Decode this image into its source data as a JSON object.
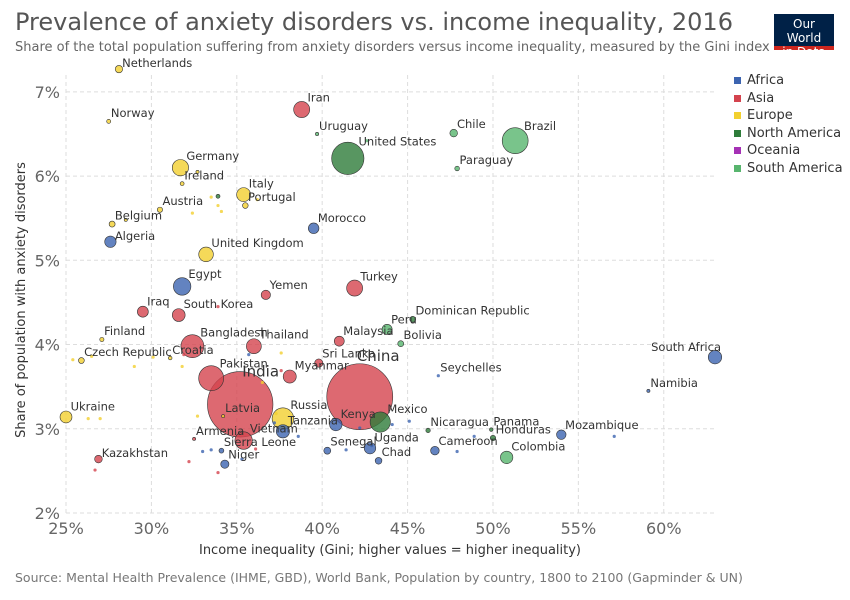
{
  "header": {
    "title": "Prevalence of anxiety disorders vs. income inequality, 2016",
    "subtitle": "Share of the total population suffering from anxiety disorders versus income inequality, measured by the Gini index",
    "logo_line1": "Our World",
    "logo_line2": "in Data"
  },
  "footer": {
    "source": "Source: Mental Health Prevalence (IHME, GBD), World Bank, Population by country, 1800 to 2100 (Gapminder & UN)"
  },
  "legend": {
    "items": [
      {
        "label": "Africa",
        "color": "#3C64B0"
      },
      {
        "label": "Asia",
        "color": "#D4434E"
      },
      {
        "label": "Europe",
        "color": "#F2D02F"
      },
      {
        "label": "North America",
        "color": "#2E7C3A"
      },
      {
        "label": "Oceania",
        "color": "#A531B5"
      },
      {
        "label": "South America",
        "color": "#58B56E"
      }
    ]
  },
  "chart_data": {
    "type": "scatter",
    "title": "Prevalence of anxiety disorders vs. income inequality, 2016",
    "xlabel": "Income inequality (Gini; higher values = higher inequality)",
    "ylabel": "Share of population with anxiety disorders",
    "xlim": [
      25,
      63
    ],
    "ylim": [
      2,
      7.2
    ],
    "x_ticks": [
      25,
      30,
      35,
      40,
      45,
      50,
      55,
      60
    ],
    "x_tick_labels": [
      "25%",
      "30%",
      "35%",
      "40%",
      "45%",
      "50%",
      "55%",
      "60%"
    ],
    "y_ticks": [
      2,
      3,
      4,
      5,
      6,
      7
    ],
    "y_tick_labels": [
      "2%",
      "3%",
      "4%",
      "5%",
      "6%",
      "7%"
    ],
    "grid": true,
    "legend_position": "top-right",
    "points": [
      {
        "label": "Netherlands",
        "region": "Europe",
        "x": 28.1,
        "y": 7.27,
        "pop": 17
      },
      {
        "label": "Norway",
        "region": "Europe",
        "x": 27.5,
        "y": 6.65,
        "pop": 5
      },
      {
        "label": "Iran",
        "region": "Asia",
        "x": 38.8,
        "y": 6.79,
        "pop": 80
      },
      {
        "label": "Uruguay",
        "region": "South America",
        "x": 39.7,
        "y": 6.5,
        "pop": 3.4
      },
      {
        "label": "Chile",
        "region": "South America",
        "x": 47.7,
        "y": 6.51,
        "pop": 18
      },
      {
        "label": "Brazil",
        "region": "South America",
        "x": 51.3,
        "y": 6.42,
        "pop": 208
      },
      {
        "label": "United States",
        "region": "North America",
        "x": 41.5,
        "y": 6.21,
        "pop": 323
      },
      {
        "label": "Germany",
        "region": "Europe",
        "x": 31.7,
        "y": 6.1,
        "pop": 82
      },
      {
        "label": "Ireland",
        "region": "Europe",
        "x": 31.8,
        "y": 5.91,
        "pop": 4.8
      },
      {
        "label": "Paraguay",
        "region": "South America",
        "x": 47.9,
        "y": 6.09,
        "pop": 6.7
      },
      {
        "label": "Italy",
        "region": "Europe",
        "x": 35.4,
        "y": 5.78,
        "pop": 60
      },
      {
        "label": "Portugal",
        "region": "Europe",
        "x": 35.5,
        "y": 5.65,
        "pop": 10
      },
      {
        "label": "Austria",
        "region": "Europe",
        "x": 30.5,
        "y": 5.6,
        "pop": 8.7
      },
      {
        "label": "Belgium",
        "region": "Europe",
        "x": 27.7,
        "y": 5.43,
        "pop": 11
      },
      {
        "label": "Morocco",
        "region": "Africa",
        "x": 39.5,
        "y": 5.38,
        "pop": 35
      },
      {
        "label": "Algeria",
        "region": "Africa",
        "x": 27.6,
        "y": 5.22,
        "pop": 40
      },
      {
        "label": "United Kingdom",
        "region": "Europe",
        "x": 33.2,
        "y": 5.07,
        "pop": 66
      },
      {
        "label": "Egypt",
        "region": "Africa",
        "x": 31.8,
        "y": 4.69,
        "pop": 95
      },
      {
        "label": "Yemen",
        "region": "Asia",
        "x": 36.7,
        "y": 4.59,
        "pop": 27
      },
      {
        "label": "Turkey",
        "region": "Asia",
        "x": 41.9,
        "y": 4.67,
        "pop": 79
      },
      {
        "label": "Iraq",
        "region": "Asia",
        "x": 29.5,
        "y": 4.39,
        "pop": 37
      },
      {
        "label": "South Korea",
        "region": "Asia",
        "x": 31.6,
        "y": 4.35,
        "pop": 51
      },
      {
        "label": "Dominican Republic",
        "region": "North America",
        "x": 45.3,
        "y": 4.3,
        "pop": 10.6
      },
      {
        "label": "Peru",
        "region": "South America",
        "x": 43.8,
        "y": 4.18,
        "pop": 32
      },
      {
        "label": "Malaysia",
        "region": "Asia",
        "x": 41.0,
        "y": 4.04,
        "pop": 31
      },
      {
        "label": "Bolivia",
        "region": "South America",
        "x": 44.6,
        "y": 4.01,
        "pop": 11
      },
      {
        "label": "Finland",
        "region": "Europe",
        "x": 27.1,
        "y": 4.06,
        "pop": 5.5
      },
      {
        "label": "Bangladesh",
        "region": "Asia",
        "x": 32.4,
        "y": 3.98,
        "pop": 163
      },
      {
        "label": "Thailand",
        "region": "Asia",
        "x": 36.0,
        "y": 3.98,
        "pop": 69
      },
      {
        "label": "South Africa",
        "region": "Africa",
        "x": 63.0,
        "y": 3.85,
        "pop": 56
      },
      {
        "label": "Czech Republic",
        "region": "Europe",
        "x": 25.9,
        "y": 3.81,
        "pop": 10.6
      },
      {
        "label": "Croatia",
        "region": "Europe",
        "x": 31.1,
        "y": 3.84,
        "pop": 4.2
      },
      {
        "label": "Sri Lanka",
        "region": "Asia",
        "x": 39.8,
        "y": 3.78,
        "pop": 21
      },
      {
        "label": "Pakistan",
        "region": "Asia",
        "x": 33.5,
        "y": 3.6,
        "pop": 193
      },
      {
        "label": "Myanmar",
        "region": "Asia",
        "x": 38.1,
        "y": 3.62,
        "pop": 53
      },
      {
        "label": "Seychelles",
        "region": "Africa",
        "x": 46.8,
        "y": 3.63,
        "pop": 0.1
      },
      {
        "label": "India",
        "region": "Asia",
        "x": 35.2,
        "y": 3.29,
        "pop": 1324
      },
      {
        "label": "China",
        "region": "Asia",
        "x": 42.2,
        "y": 3.38,
        "pop": 1379
      },
      {
        "label": "Namibia",
        "region": "Africa",
        "x": 59.1,
        "y": 3.45,
        "pop": 2.5
      },
      {
        "label": "Ukraine",
        "region": "Europe",
        "x": 25.0,
        "y": 3.14,
        "pop": 44
      },
      {
        "label": "Latvia",
        "region": "Europe",
        "x": 34.2,
        "y": 3.15,
        "pop": 2
      },
      {
        "label": "Russia",
        "region": "Europe",
        "x": 37.7,
        "y": 3.12,
        "pop": 144
      },
      {
        "label": "Kenya",
        "region": "Africa",
        "x": 40.8,
        "y": 3.05,
        "pop": 48
      },
      {
        "label": "Mexico",
        "region": "North America",
        "x": 43.4,
        "y": 3.08,
        "pop": 127
      },
      {
        "label": "Tanzania",
        "region": "Africa",
        "x": 37.7,
        "y": 2.97,
        "pop": 55
      },
      {
        "label": "Nicaragua",
        "region": "North America",
        "x": 46.2,
        "y": 2.98,
        "pop": 6.1
      },
      {
        "label": "Panama",
        "region": "North America",
        "x": 49.9,
        "y": 2.99,
        "pop": 4
      },
      {
        "label": "Mozambique",
        "region": "Africa",
        "x": 54.0,
        "y": 2.93,
        "pop": 28
      },
      {
        "label": "Honduras",
        "region": "North America",
        "x": 50.0,
        "y": 2.89,
        "pop": 9.1
      },
      {
        "label": "Armenia",
        "region": "Asia",
        "x": 32.5,
        "y": 2.88,
        "pop": 2.9
      },
      {
        "label": "Vietnam",
        "region": "Asia",
        "x": 35.4,
        "y": 2.86,
        "pop": 94
      },
      {
        "label": "Sierra Leone",
        "region": "Africa",
        "x": 34.1,
        "y": 2.74,
        "pop": 7.4
      },
      {
        "label": "Senegal",
        "region": "Africa",
        "x": 40.3,
        "y": 2.74,
        "pop": 15
      },
      {
        "label": "Uganda",
        "region": "Africa",
        "x": 42.8,
        "y": 2.77,
        "pop": 41
      },
      {
        "label": "Cameroon",
        "region": "Africa",
        "x": 46.6,
        "y": 2.74,
        "pop": 23
      },
      {
        "label": "Colombia",
        "region": "South America",
        "x": 50.8,
        "y": 2.66,
        "pop": 48
      },
      {
        "label": "Chad",
        "region": "Africa",
        "x": 43.3,
        "y": 2.62,
        "pop": 14
      },
      {
        "label": "Niger",
        "region": "Africa",
        "x": 34.3,
        "y": 2.58,
        "pop": 21
      },
      {
        "label": "Kazakhstan",
        "region": "Asia",
        "x": 26.9,
        "y": 2.64,
        "pop": 18
      },
      {
        "label": "",
        "region": "Europe",
        "x": 32.7,
        "y": 6.05,
        "pop": 2
      },
      {
        "label": "",
        "region": "Europe",
        "x": 33.5,
        "y": 5.75,
        "pop": 1
      },
      {
        "label": "",
        "region": "North America",
        "x": 33.9,
        "y": 5.76,
        "pop": 5
      },
      {
        "label": "",
        "region": "Europe",
        "x": 33.9,
        "y": 5.65,
        "pop": 1
      },
      {
        "label": "",
        "region": "Europe",
        "x": 34.1,
        "y": 5.58,
        "pop": 0.6
      },
      {
        "label": "",
        "region": "Europe",
        "x": 32.4,
        "y": 5.56,
        "pop": 1
      },
      {
        "label": "",
        "region": "Europe",
        "x": 36.2,
        "y": 5.72,
        "pop": 1
      },
      {
        "label": "",
        "region": "South America",
        "x": 42.6,
        "y": 6.42,
        "pop": 0.3
      },
      {
        "label": "",
        "region": "Europe",
        "x": 28.5,
        "y": 5.48,
        "pop": 2
      },
      {
        "label": "",
        "region": "Asia",
        "x": 33.9,
        "y": 4.45,
        "pop": 0.5
      },
      {
        "label": "",
        "region": "Europe",
        "x": 25.4,
        "y": 3.82,
        "pop": 0.7
      },
      {
        "label": "",
        "region": "Europe",
        "x": 26.5,
        "y": 3.86,
        "pop": 0.5
      },
      {
        "label": "",
        "region": "Europe",
        "x": 30.1,
        "y": 3.85,
        "pop": 0.5
      },
      {
        "label": "",
        "region": "Europe",
        "x": 29.0,
        "y": 3.74,
        "pop": 0.5
      },
      {
        "label": "",
        "region": "Europe",
        "x": 31.8,
        "y": 3.74,
        "pop": 0.5
      },
      {
        "label": "",
        "region": "Asia",
        "x": 31.9,
        "y": 3.88,
        "pop": 0.4
      },
      {
        "label": "",
        "region": "Europe",
        "x": 36.5,
        "y": 3.55,
        "pop": 0.7
      },
      {
        "label": "",
        "region": "Asia",
        "x": 37.6,
        "y": 3.69,
        "pop": 0.4
      },
      {
        "label": "",
        "region": "Europe",
        "x": 37.6,
        "y": 3.9,
        "pop": 0.4
      },
      {
        "label": "",
        "region": "Africa",
        "x": 35.7,
        "y": 3.88,
        "pop": 0.3
      },
      {
        "label": "",
        "region": "Europe",
        "x": 26.3,
        "y": 3.12,
        "pop": 0.7
      },
      {
        "label": "",
        "region": "Europe",
        "x": 27.0,
        "y": 3.12,
        "pop": 0.6
      },
      {
        "label": "",
        "region": "Europe",
        "x": 32.7,
        "y": 3.15,
        "pop": 0.6
      },
      {
        "label": "",
        "region": "Europe",
        "x": 37.3,
        "y": 3.18,
        "pop": 0.5
      },
      {
        "label": "",
        "region": "Africa",
        "x": 37.2,
        "y": 3.07,
        "pop": 1
      },
      {
        "label": "",
        "region": "Africa",
        "x": 38.6,
        "y": 2.91,
        "pop": 1
      },
      {
        "label": "",
        "region": "Africa",
        "x": 42.2,
        "y": 3.01,
        "pop": 1
      },
      {
        "label": "",
        "region": "Africa",
        "x": 44.1,
        "y": 3.05,
        "pop": 1
      },
      {
        "label": "",
        "region": "Africa",
        "x": 45.1,
        "y": 3.09,
        "pop": 1
      },
      {
        "label": "",
        "region": "Africa",
        "x": 48.9,
        "y": 2.91,
        "pop": 1
      },
      {
        "label": "",
        "region": "Africa",
        "x": 47.9,
        "y": 2.73,
        "pop": 1
      },
      {
        "label": "",
        "region": "Africa",
        "x": 57.1,
        "y": 2.91,
        "pop": 1
      },
      {
        "label": "",
        "region": "Africa",
        "x": 41.4,
        "y": 2.75,
        "pop": 1
      },
      {
        "label": "",
        "region": "Africa",
        "x": 42.9,
        "y": 2.8,
        "pop": 1
      },
      {
        "label": "",
        "region": "Africa",
        "x": 33.5,
        "y": 2.75,
        "pop": 1
      },
      {
        "label": "",
        "region": "Africa",
        "x": 33.0,
        "y": 2.73,
        "pop": 0.7
      },
      {
        "label": "",
        "region": "Asia",
        "x": 32.2,
        "y": 2.61,
        "pop": 0.7
      },
      {
        "label": "",
        "region": "Asia",
        "x": 26.7,
        "y": 2.51,
        "pop": 0.7
      },
      {
        "label": "",
        "region": "Asia",
        "x": 33.9,
        "y": 2.48,
        "pop": 0.7
      },
      {
        "label": "",
        "region": "Asia",
        "x": 36.1,
        "y": 2.76,
        "pop": 0.8
      },
      {
        "label": "",
        "region": "Africa",
        "x": 35.3,
        "y": 2.64,
        "pop": 1
      }
    ]
  }
}
